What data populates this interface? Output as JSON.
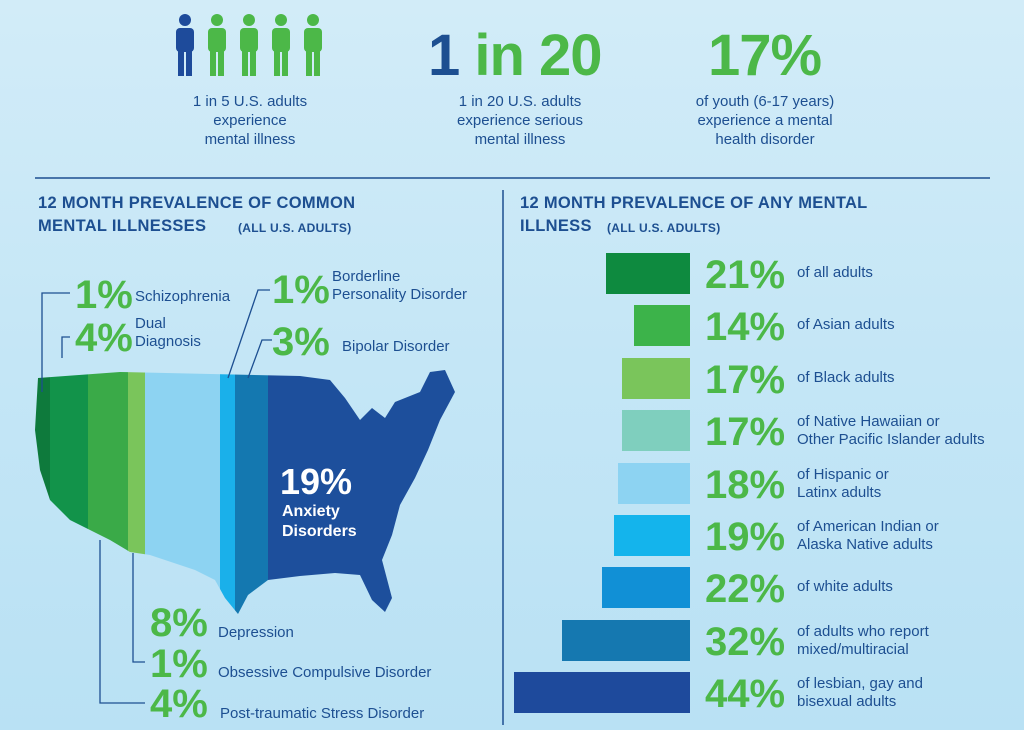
{
  "stats": [
    {
      "text": "1 in 5 U.S. adults\nexperience\nmental illness"
    },
    {
      "figure": [
        "1",
        "in 20"
      ],
      "text": "1 in 20 U.S. adults\nexperience serious\nmental illness"
    },
    {
      "figure": "17%",
      "text": "of youth (6-17 years)\nexperience a mental\nhealth disorder"
    }
  ],
  "map_panel": {
    "title": "12 MONTH PREVALENCE OF COMMON\nMENTAL ILLNESSES",
    "subtitle": "(ALL U.S. ADULTS)",
    "items": [
      {
        "value": "1%",
        "label": "Schizophrenia"
      },
      {
        "value": "4%",
        "label": "Dual\nDiagnosis"
      },
      {
        "value": "1%",
        "label": "Borderline\nPersonality Disorder"
      },
      {
        "value": "3%",
        "label": "Bipolar Disorder"
      },
      {
        "value": "19%",
        "label": "Anxiety\nDisorders"
      },
      {
        "value": "8%",
        "label": "Depression"
      },
      {
        "value": "1%",
        "label": "Obsessive Compulsive Disorder"
      },
      {
        "value": "4%",
        "label": "Post-traumatic Stress Disorder"
      }
    ]
  },
  "chart_data": {
    "type": "bar",
    "title": "12 MONTH PREVALENCE OF ANY MENTAL\nILLNESS",
    "subtitle": "(ALL U.S. ADULTS)",
    "categories": [
      "of all adults",
      "of Asian adults",
      "of Black adults",
      "of Native Hawaiian or\nOther Pacific Islander adults",
      "of Hispanic or\nLatinx adults",
      "of American Indian or\nAlaska Native adults",
      "of white adults",
      "of adults who report\nmixed/multiracial",
      "of lesbian, gay and\nbisexual adults"
    ],
    "values": [
      21,
      14,
      17,
      17,
      18,
      19,
      22,
      32,
      44
    ],
    "value_labels": [
      "21%",
      "14%",
      "17%",
      "17%",
      "18%",
      "19%",
      "22%",
      "32%",
      "44%"
    ],
    "colors": [
      "#0e8a3f",
      "#3cb34a",
      "#7ac55b",
      "#7fcfbe",
      "#8dd3f2",
      "#14b4ec",
      "#1190d6",
      "#1578b0",
      "#1e4a9c"
    ]
  }
}
